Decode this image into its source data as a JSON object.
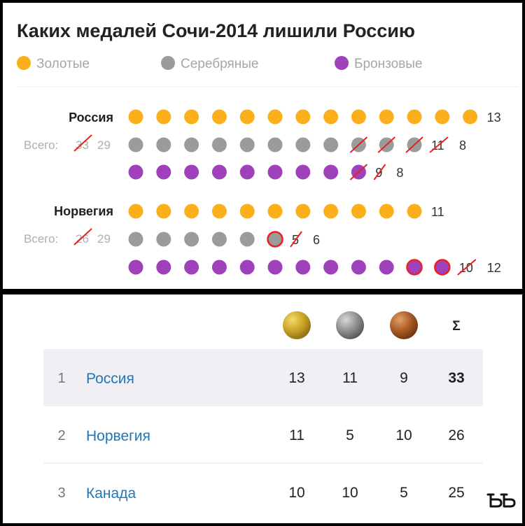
{
  "chart_data": {
    "type": "dot-matrix",
    "title": "Каких медалей Сочи-2014 лишили Россию",
    "legend": [
      {
        "key": "gold",
        "label": "Золотые",
        "color": "#fbaf1b"
      },
      {
        "key": "silver",
        "label": "Серебряные",
        "color": "#9b9b9b"
      },
      {
        "key": "bronze",
        "label": "Бронзовые",
        "color": "#a041bc"
      }
    ],
    "total_prefix": "Всего:",
    "countries": [
      {
        "name": "Россия",
        "total_old": "33",
        "total_new": "29",
        "rows": [
          {
            "medal": "gold",
            "dots": 13,
            "stripped": 0,
            "gained": 0,
            "old_count": "",
            "new_count": "13"
          },
          {
            "medal": "silver",
            "dots": 11,
            "stripped": 3,
            "gained": 0,
            "old_count": "11",
            "new_count": "8"
          },
          {
            "medal": "bronze",
            "dots": 9,
            "stripped": 1,
            "gained": 0,
            "old_count": "9",
            "new_count": "8"
          }
        ]
      },
      {
        "name": "Норвегия",
        "total_old": "26",
        "total_new": "29",
        "rows": [
          {
            "medal": "gold",
            "dots": 11,
            "stripped": 0,
            "gained": 0,
            "old_count": "",
            "new_count": "11"
          },
          {
            "medal": "silver",
            "dots": 6,
            "stripped": 0,
            "gained": 1,
            "old_count": "5",
            "new_count": "6"
          },
          {
            "medal": "bronze",
            "dots": 12,
            "stripped": 0,
            "gained": 2,
            "old_count": "10",
            "new_count": "12"
          }
        ]
      }
    ]
  },
  "table": {
    "medal_icons": [
      "gold-medal",
      "silver-medal",
      "bronze-medal"
    ],
    "medal_colors": {
      "gold": "#c9a227",
      "silver": "#8f8f8f",
      "bronze": "#a85a24"
    },
    "sum_header": "Σ",
    "rows": [
      {
        "rank": "1",
        "country": "Россия",
        "gold": "13",
        "silver": "11",
        "bronze": "9",
        "total": "33",
        "highlight": true
      },
      {
        "rank": "2",
        "country": "Норвегия",
        "gold": "11",
        "silver": "5",
        "bronze": "10",
        "total": "26",
        "highlight": false
      },
      {
        "rank": "3",
        "country": "Канада",
        "gold": "10",
        "silver": "10",
        "bronze": "5",
        "total": "25",
        "highlight": false
      }
    ]
  },
  "watermark": "ъъ"
}
